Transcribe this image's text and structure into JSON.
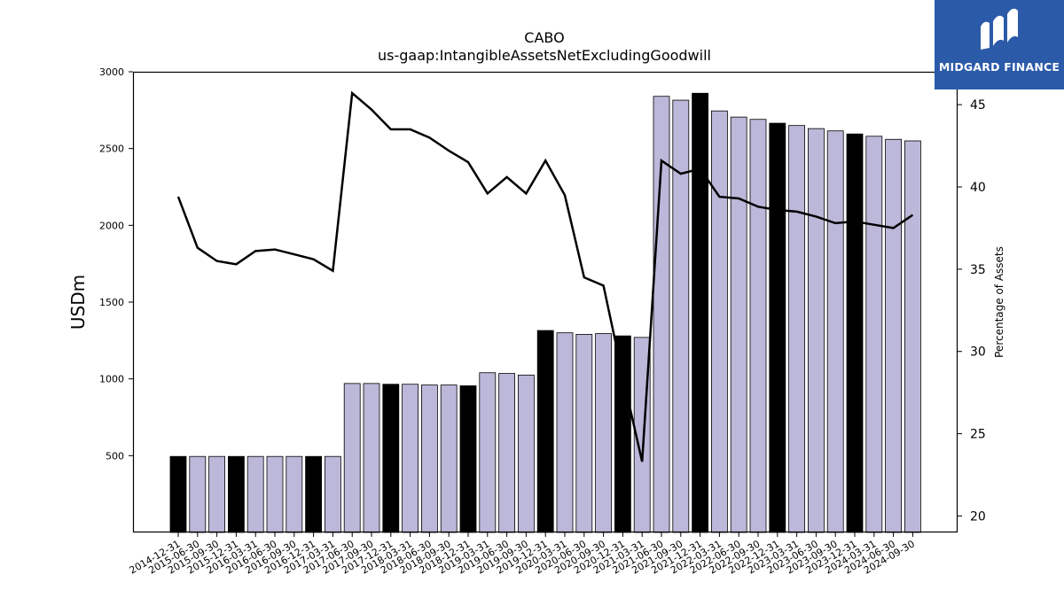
{
  "chart_data": {
    "type": "bar",
    "title": "CABO",
    "subtitle": "us-gaap:IntangibleAssetsNetExcludingGoodwill",
    "ylabel": "USDm",
    "y2label": "Percentage of Assets",
    "ylim": [
      0,
      3000
    ],
    "y2lim": [
      19,
      47
    ],
    "yticks": [
      500,
      1000,
      1500,
      2000,
      2500,
      3000
    ],
    "y2ticks": [
      20,
      25,
      30,
      35,
      40,
      45
    ],
    "grid": false,
    "categories": [
      "2014-12-31",
      "2015-06-30",
      "2015-09-30",
      "2015-12-31",
      "2016-03-31",
      "2016-06-30",
      "2016-09-30",
      "2016-12-31",
      "2017-03-31",
      "2017-06-30",
      "2017-09-30",
      "2017-12-31",
      "2018-03-31",
      "2018-06-30",
      "2018-09-30",
      "2018-12-31",
      "2019-03-31",
      "2019-06-30",
      "2019-09-30",
      "2019-12-31",
      "2020-03-31",
      "2020-06-30",
      "2020-09-30",
      "2020-12-31",
      "2021-03-31",
      "2021-06-30",
      "2021-09-30",
      "2021-12-31",
      "2022-03-31",
      "2022-06-30",
      "2022-09-30",
      "2022-12-31",
      "2023-03-31",
      "2023-06-30",
      "2023-09-30",
      "2023-12-31",
      "2024-03-31",
      "2024-06-30",
      "2024-09-30"
    ],
    "series": [
      {
        "values": [
          495,
          495,
          495,
          495,
          495,
          495,
          495,
          495,
          495,
          970,
          970,
          965,
          965,
          960,
          960,
          955,
          1040,
          1035,
          1025,
          1315,
          1300,
          1290,
          1295,
          1280,
          1270,
          2840,
          2815,
          2860,
          2745,
          2705,
          2690,
          2665,
          2650,
          2630,
          2615,
          2595,
          2580,
          2560,
          2550
        ],
        "highlight": [
          true,
          false,
          false,
          true,
          false,
          false,
          false,
          true,
          false,
          false,
          false,
          true,
          false,
          false,
          false,
          true,
          false,
          false,
          false,
          true,
          false,
          false,
          false,
          true,
          false,
          false,
          false,
          true,
          false,
          false,
          false,
          true,
          false,
          false,
          false,
          true,
          false,
          false,
          false
        ],
        "color": "#bcb8d9",
        "highlight_color": "#000000"
      },
      {
        "type": "line",
        "axis": "right",
        "color": "#000000",
        "values": [
          39.4,
          36.3,
          35.5,
          35.3,
          36.1,
          36.2,
          35.9,
          35.6,
          34.9,
          45.7,
          44.7,
          43.5,
          43.5,
          43.0,
          42.2,
          41.5,
          39.6,
          40.6,
          39.6,
          41.6,
          39.5,
          34.5,
          34.0,
          28.5,
          23.3,
          41.6,
          40.8,
          41.1,
          39.4,
          39.3,
          38.8,
          38.6,
          38.5,
          38.2,
          37.8,
          37.9,
          37.7,
          37.5,
          38.3
        ]
      }
    ]
  },
  "logo": {
    "text": "MIDGARD FINANCE"
  }
}
